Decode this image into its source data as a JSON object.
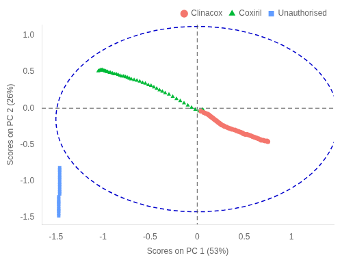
{
  "chart_data": {
    "type": "scatter",
    "title": "",
    "xlabel": "Scores on PC 1 (53%)",
    "ylabel": "Scores on PC 2 (26%)",
    "xlim": [
      -1.65,
      1.45
    ],
    "ylim": [
      -1.6,
      1.15
    ],
    "xticks": [
      -1.5,
      -1,
      -0.5,
      0,
      0.5,
      1
    ],
    "yticks": [
      -1.5,
      {
        "value": -1.0,
        "label": "-1.0"
      },
      -0.5,
      {
        "value": 0.0,
        "label": "0.0"
      },
      0.5,
      {
        "value": 1.0,
        "label": "1.0"
      }
    ],
    "grid": false,
    "legend": "upper right",
    "ellipse": {
      "center_x": 0.0,
      "center_y": -0.15,
      "width": 3.0,
      "height": 2.55,
      "color": "#0000cc",
      "line_style": "dashed"
    },
    "reference_lines": {
      "x": 0,
      "y": 0,
      "color": "#555555",
      "line_style": "dashed"
    },
    "series": [
      {
        "name": "Clinacox",
        "color": "#F4766D",
        "marker": "circle",
        "x": [
          0.04,
          0.07,
          0.09,
          0.11,
          0.12,
          0.13,
          0.14,
          0.15,
          0.16,
          0.17,
          0.18,
          0.19,
          0.2,
          0.21,
          0.22,
          0.23,
          0.24,
          0.25,
          0.26,
          0.28,
          0.29,
          0.31,
          0.33,
          0.35,
          0.37,
          0.4,
          0.42,
          0.44,
          0.46,
          0.48,
          0.49,
          0.51,
          0.53,
          0.55,
          0.57,
          0.59,
          0.61,
          0.63,
          0.65,
          0.67,
          0.68,
          0.7,
          0.72,
          0.74,
          0.75
        ],
        "values": [
          -0.04,
          -0.06,
          -0.07,
          -0.08,
          -0.09,
          -0.1,
          -0.11,
          -0.12,
          -0.13,
          -0.14,
          -0.15,
          -0.16,
          -0.17,
          -0.18,
          -0.19,
          -0.2,
          -0.21,
          -0.22,
          -0.23,
          -0.24,
          -0.25,
          -0.26,
          -0.27,
          -0.28,
          -0.29,
          -0.3,
          -0.31,
          -0.32,
          -0.33,
          -0.34,
          -0.35,
          -0.36,
          -0.36,
          -0.37,
          -0.38,
          -0.39,
          -0.4,
          -0.41,
          -0.42,
          -0.43,
          -0.44,
          -0.44,
          -0.45,
          -0.45,
          -0.46
        ]
      },
      {
        "name": "Coxiril",
        "color": "#00BA38",
        "marker": "triangle",
        "x": [
          -1.05,
          -1.04,
          -1.03,
          -1.02,
          -1.01,
          -1.0,
          -0.99,
          -0.98,
          -0.97,
          -0.96,
          -0.95,
          -0.93,
          -0.92,
          -0.9,
          -0.88,
          -0.86,
          -0.84,
          -0.82,
          -0.8,
          -0.78,
          -0.76,
          -0.74,
          -0.72,
          -0.7,
          -0.67,
          -0.64,
          -0.61,
          -0.58,
          -0.55,
          -0.52,
          -0.49,
          -0.46,
          -0.43,
          -0.4,
          -0.37,
          -0.34,
          -0.3,
          -0.26,
          -0.22,
          -0.18,
          -0.14,
          -0.1,
          -0.06,
          -0.02,
          0.02,
          0.05,
          0.06
        ],
        "values": [
          0.51,
          0.52,
          0.52,
          0.53,
          0.53,
          0.52,
          0.52,
          0.51,
          0.51,
          0.5,
          0.5,
          0.49,
          0.49,
          0.48,
          0.47,
          0.47,
          0.46,
          0.45,
          0.44,
          0.44,
          0.43,
          0.42,
          0.41,
          0.4,
          0.39,
          0.38,
          0.37,
          0.35,
          0.34,
          0.32,
          0.31,
          0.29,
          0.27,
          0.25,
          0.23,
          0.21,
          0.19,
          0.16,
          0.13,
          0.1,
          0.07,
          0.04,
          0.01,
          -0.02,
          -0.04,
          -0.03,
          -0.02
        ]
      },
      {
        "name": "Unauthorised",
        "color": "#619CFF",
        "marker": "square",
        "x": [
          -1.46,
          -1.46,
          -1.46,
          -1.46,
          -1.46,
          -1.46,
          -1.46,
          -1.46,
          -1.46,
          -1.46,
          -1.46,
          -1.46,
          -1.47,
          -1.47,
          -1.47,
          -1.47,
          -1.47,
          -1.47,
          -1.47,
          -1.47,
          -1.47,
          -1.47,
          -1.47
        ],
        "values": [
          -0.82,
          -0.85,
          -0.88,
          -0.92,
          -0.95,
          -0.98,
          -1.02,
          -1.05,
          -1.08,
          -1.12,
          -1.15,
          -1.18,
          -1.22,
          -1.25,
          -1.28,
          -1.3,
          -1.32,
          -1.35,
          -1.38,
          -1.4,
          -1.42,
          -1.45,
          -1.48
        ]
      }
    ]
  }
}
